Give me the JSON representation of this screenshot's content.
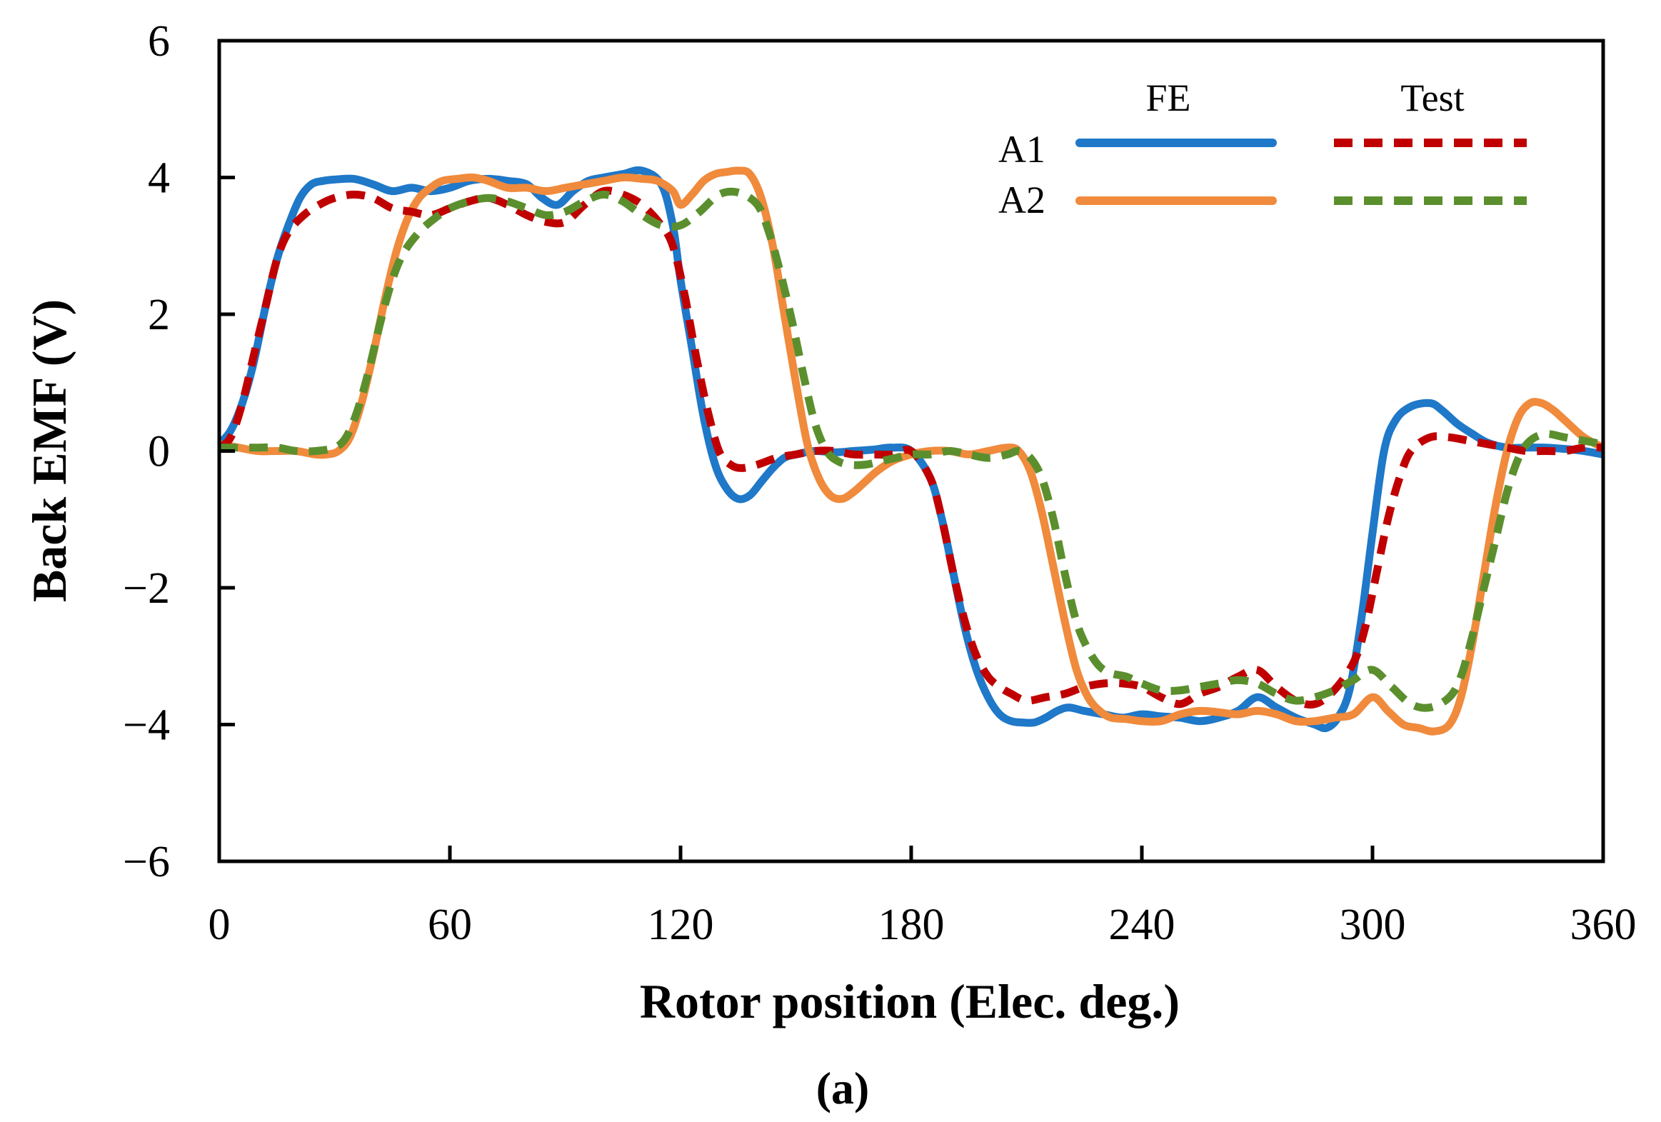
{
  "chart_data": {
    "type": "line",
    "title": "",
    "caption": "(a)",
    "xlabel": "Rotor position (Elec. deg.)",
    "ylabel": "Back EMF (V)",
    "xlim": [
      0,
      360
    ],
    "ylim": [
      -6,
      6
    ],
    "xticks": [
      0,
      60,
      120,
      180,
      240,
      300,
      360
    ],
    "yticks": [
      6,
      4,
      2,
      0,
      -2,
      -4,
      -6
    ],
    "xtick_labels": [
      "0",
      "60",
      "120",
      "180",
      "240",
      "300",
      "360"
    ],
    "ytick_labels": [
      "6",
      "4",
      "2",
      "0",
      "−2",
      "−4",
      "−6"
    ],
    "grid": false,
    "legend": {
      "placement": "top-right",
      "column_headers": [
        "FE",
        "Test"
      ],
      "row_labels": [
        "A1",
        "A2"
      ]
    },
    "series": [
      {
        "name": "A1 FE",
        "color": "#1f78c8",
        "style": "solid",
        "x": [
          0,
          3,
          6,
          9,
          12,
          15,
          18,
          21,
          24,
          27,
          30,
          35,
          40,
          45,
          50,
          55,
          60,
          65,
          70,
          75,
          80,
          84,
          88,
          92,
          96,
          100,
          105,
          110,
          115,
          118,
          120,
          123,
          126,
          129,
          132,
          135,
          138,
          141,
          144,
          147,
          150,
          155,
          160,
          165,
          170,
          175,
          180,
          185,
          188,
          191,
          194,
          197,
          200,
          203,
          206,
          209,
          212,
          215,
          218,
          221,
          225,
          230,
          235,
          240,
          245,
          250,
          255,
          260,
          265,
          270,
          275,
          280,
          285,
          288,
          291,
          294,
          297,
          300,
          303,
          306,
          310,
          315,
          318,
          322,
          326,
          330,
          335,
          340,
          345,
          350,
          355,
          360
        ],
        "y": [
          0.1,
          0.3,
          0.7,
          1.3,
          2.1,
          2.8,
          3.3,
          3.7,
          3.9,
          3.95,
          3.97,
          3.98,
          3.9,
          3.8,
          3.85,
          3.8,
          3.85,
          3.95,
          3.98,
          3.95,
          3.9,
          3.7,
          3.6,
          3.8,
          3.95,
          4.0,
          4.05,
          4.1,
          3.9,
          3.3,
          2.5,
          1.5,
          0.5,
          -0.2,
          -0.55,
          -0.7,
          -0.65,
          -0.45,
          -0.25,
          -0.1,
          -0.05,
          0.0,
          -0.02,
          0.0,
          0.02,
          0.05,
          0.0,
          -0.4,
          -1.0,
          -1.8,
          -2.6,
          -3.2,
          -3.6,
          -3.85,
          -3.95,
          -3.97,
          -3.97,
          -3.9,
          -3.8,
          -3.75,
          -3.8,
          -3.85,
          -3.9,
          -3.85,
          -3.88,
          -3.9,
          -3.95,
          -3.9,
          -3.8,
          -3.6,
          -3.75,
          -3.9,
          -4.0,
          -4.05,
          -3.9,
          -3.5,
          -2.5,
          -1.2,
          0.0,
          0.45,
          0.65,
          0.7,
          0.6,
          0.4,
          0.25,
          0.12,
          0.05,
          0.05,
          0.05,
          0.03,
          0.0,
          -0.05
        ]
      },
      {
        "name": "A2 FE",
        "color": "#f08a3c",
        "style": "solid",
        "x": [
          0,
          5,
          10,
          15,
          20,
          25,
          28,
          31,
          34,
          37,
          40,
          43,
          46,
          49,
          52,
          55,
          58,
          62,
          66,
          70,
          75,
          80,
          85,
          90,
          95,
          100,
          105,
          110,
          114,
          118,
          120,
          123,
          126,
          129,
          132,
          135,
          138,
          141,
          144,
          147,
          150,
          153,
          156,
          159,
          162,
          165,
          168,
          171,
          175,
          180,
          185,
          190,
          195,
          200,
          205,
          208,
          211,
          214,
          217,
          220,
          223,
          226,
          229,
          232,
          236,
          240,
          245,
          250,
          255,
          260,
          265,
          270,
          275,
          280,
          285,
          290,
          295,
          300,
          304,
          308,
          312,
          316,
          320,
          323,
          326,
          329,
          332,
          335,
          338,
          341,
          344,
          347,
          350,
          355,
          360
        ],
        "y": [
          0.1,
          0.05,
          0.0,
          0.0,
          0.0,
          -0.05,
          -0.05,
          0.0,
          0.2,
          0.7,
          1.4,
          2.2,
          2.9,
          3.4,
          3.7,
          3.85,
          3.95,
          3.98,
          4.0,
          3.95,
          3.85,
          3.85,
          3.8,
          3.85,
          3.9,
          3.95,
          4.0,
          3.98,
          3.95,
          3.8,
          3.6,
          3.75,
          3.95,
          4.05,
          4.08,
          4.1,
          4.05,
          3.7,
          3.0,
          2.0,
          1.0,
          0.1,
          -0.4,
          -0.65,
          -0.7,
          -0.6,
          -0.45,
          -0.3,
          -0.15,
          -0.05,
          0.0,
          0.0,
          -0.05,
          0.0,
          0.05,
          0.0,
          -0.3,
          -0.9,
          -1.7,
          -2.5,
          -3.2,
          -3.6,
          -3.8,
          -3.9,
          -3.92,
          -3.95,
          -3.95,
          -3.85,
          -3.8,
          -3.82,
          -3.85,
          -3.8,
          -3.85,
          -3.95,
          -3.95,
          -3.9,
          -3.85,
          -3.6,
          -3.8,
          -4.0,
          -4.05,
          -4.1,
          -4.0,
          -3.6,
          -2.8,
          -1.8,
          -0.8,
          0.0,
          0.5,
          0.7,
          0.7,
          0.6,
          0.45,
          0.2,
          0.05
        ]
      },
      {
        "name": "A1 Test",
        "color": "#c00000",
        "style": "dashed",
        "x": [
          0,
          3,
          6,
          9,
          12,
          15,
          18,
          22,
          26,
          30,
          35,
          40,
          45,
          50,
          55,
          60,
          65,
          70,
          75,
          80,
          85,
          90,
          95,
          100,
          105,
          110,
          115,
          118,
          121,
          124,
          127,
          130,
          133,
          136,
          140,
          145,
          150,
          155,
          160,
          165,
          170,
          175,
          180,
          185,
          188,
          191,
          194,
          197,
          200,
          203,
          206,
          210,
          215,
          220,
          225,
          230,
          235,
          240,
          245,
          250,
          255,
          260,
          265,
          270,
          275,
          280,
          285,
          290,
          295,
          298,
          301,
          304,
          307,
          310,
          315,
          320,
          325,
          330,
          335,
          340,
          345,
          350,
          355,
          360
        ],
        "y": [
          0.05,
          0.2,
          0.7,
          1.4,
          2.1,
          2.8,
          3.2,
          3.45,
          3.6,
          3.7,
          3.75,
          3.7,
          3.55,
          3.5,
          3.45,
          3.55,
          3.65,
          3.7,
          3.6,
          3.45,
          3.35,
          3.35,
          3.6,
          3.8,
          3.75,
          3.6,
          3.3,
          3.0,
          2.3,
          1.4,
          0.6,
          0.0,
          -0.2,
          -0.25,
          -0.2,
          -0.1,
          -0.05,
          0.0,
          0.0,
          -0.05,
          -0.05,
          -0.05,
          0.0,
          -0.4,
          -1.0,
          -1.8,
          -2.5,
          -3.0,
          -3.3,
          -3.45,
          -3.55,
          -3.65,
          -3.6,
          -3.55,
          -3.45,
          -3.4,
          -3.4,
          -3.45,
          -3.6,
          -3.7,
          -3.55,
          -3.45,
          -3.3,
          -3.2,
          -3.45,
          -3.65,
          -3.7,
          -3.5,
          -3.1,
          -2.6,
          -1.8,
          -1.0,
          -0.4,
          0.0,
          0.2,
          0.2,
          0.15,
          0.1,
          0.05,
          0.0,
          0.0,
          0.0,
          0.05,
          0.05
        ]
      },
      {
        "name": "A2 Test",
        "color": "#5b8f2e",
        "style": "dashed",
        "x": [
          0,
          5,
          10,
          15,
          20,
          25,
          30,
          33,
          36,
          39,
          42,
          45,
          48,
          52,
          56,
          60,
          65,
          70,
          75,
          80,
          85,
          90,
          95,
          100,
          105,
          110,
          115,
          120,
          125,
          130,
          135,
          140,
          143,
          146,
          149,
          152,
          155,
          158,
          161,
          164,
          168,
          172,
          176,
          180,
          185,
          190,
          195,
          200,
          205,
          208,
          211,
          214,
          217,
          220,
          223,
          226,
          229,
          232,
          236,
          240,
          245,
          250,
          255,
          260,
          265,
          270,
          275,
          280,
          285,
          290,
          295,
          300,
          305,
          310,
          315,
          320,
          323,
          326,
          329,
          332,
          335,
          338,
          341,
          345,
          350,
          355,
          360
        ],
        "y": [
          0.05,
          0.05,
          0.05,
          0.05,
          0.0,
          0.0,
          0.05,
          0.2,
          0.6,
          1.2,
          1.9,
          2.5,
          2.9,
          3.2,
          3.4,
          3.55,
          3.65,
          3.7,
          3.65,
          3.55,
          3.45,
          3.5,
          3.65,
          3.75,
          3.65,
          3.45,
          3.3,
          3.3,
          3.5,
          3.75,
          3.78,
          3.6,
          3.2,
          2.6,
          1.9,
          1.1,
          0.4,
          0.0,
          -0.15,
          -0.2,
          -0.2,
          -0.15,
          -0.1,
          -0.05,
          -0.05,
          0.0,
          -0.05,
          -0.1,
          -0.05,
          0.0,
          -0.1,
          -0.4,
          -1.0,
          -1.8,
          -2.5,
          -2.9,
          -3.15,
          -3.25,
          -3.3,
          -3.4,
          -3.5,
          -3.5,
          -3.45,
          -3.4,
          -3.35,
          -3.4,
          -3.55,
          -3.65,
          -3.6,
          -3.5,
          -3.35,
          -3.2,
          -3.45,
          -3.7,
          -3.75,
          -3.6,
          -3.3,
          -2.7,
          -2.0,
          -1.3,
          -0.6,
          -0.1,
          0.15,
          0.25,
          0.2,
          0.15,
          0.1
        ]
      }
    ]
  }
}
